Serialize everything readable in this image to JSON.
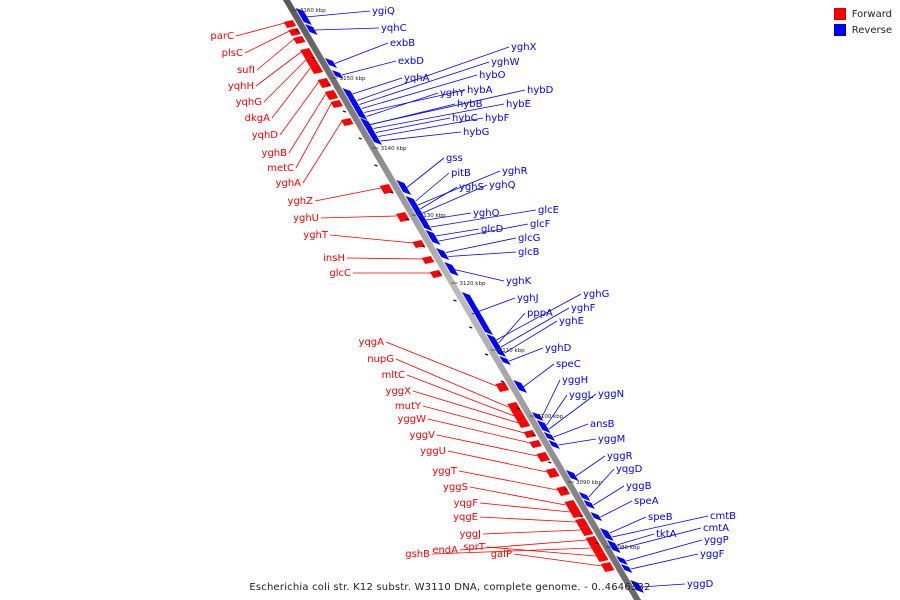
{
  "legend": {
    "forward_label": "Forward",
    "reverse_label": "Reverse",
    "forward_color": "#ff0000",
    "reverse_color": "#0000ff"
  },
  "caption": "Escherichia coli str. K12 substr. W3110 DNA, complete genome. - 0..4646332",
  "ticks": [
    "3160 kbp",
    "3150 kbp",
    "3140 kbp",
    "3130 kbp",
    "3120 kbp",
    "3110 kbp",
    "3100 kbp",
    "3090 kbp",
    "3080 kbp"
  ],
  "reverse_genes": [
    "ygiQ",
    "yqhC",
    "exbB",
    "exbD",
    "yqhA",
    "yghX",
    "yghW",
    "hybO",
    "hybA",
    "yghY",
    "hybD",
    "hybB",
    "hybE",
    "hybC",
    "hybF",
    "hybG",
    "gss",
    "pitB",
    "yghR",
    "yghS",
    "yghQ",
    "yghO",
    "glcE",
    "glcD",
    "glcF",
    "glcG",
    "glcB",
    "yghK",
    "yghJ",
    "yghG",
    "pppA",
    "yghF",
    "yghE",
    "yghD",
    "speC",
    "yggH",
    "yggL",
    "yggN",
    "ansB",
    "yggM",
    "yggR",
    "yqgD",
    "yggB",
    "speA",
    "speB",
    "cmtB",
    "tktA",
    "cmtA",
    "yggP",
    "yggF",
    "yggD"
  ],
  "forward_genes": [
    "parC",
    "plsC",
    "sufI",
    "yqhH",
    "yqhG",
    "dkgA",
    "yqhD",
    "yghB",
    "metC",
    "yghA",
    "yghZ",
    "yghU",
    "yghT",
    "insH",
    "glcC",
    "yqgA",
    "nupG",
    "mltC",
    "yggX",
    "mutY",
    "yggW",
    "yggV",
    "yggU",
    "yggT",
    "yggS",
    "yqgF",
    "yqgE",
    "yggJ",
    "endA",
    "gshB",
    "sprT",
    "galP"
  ]
}
